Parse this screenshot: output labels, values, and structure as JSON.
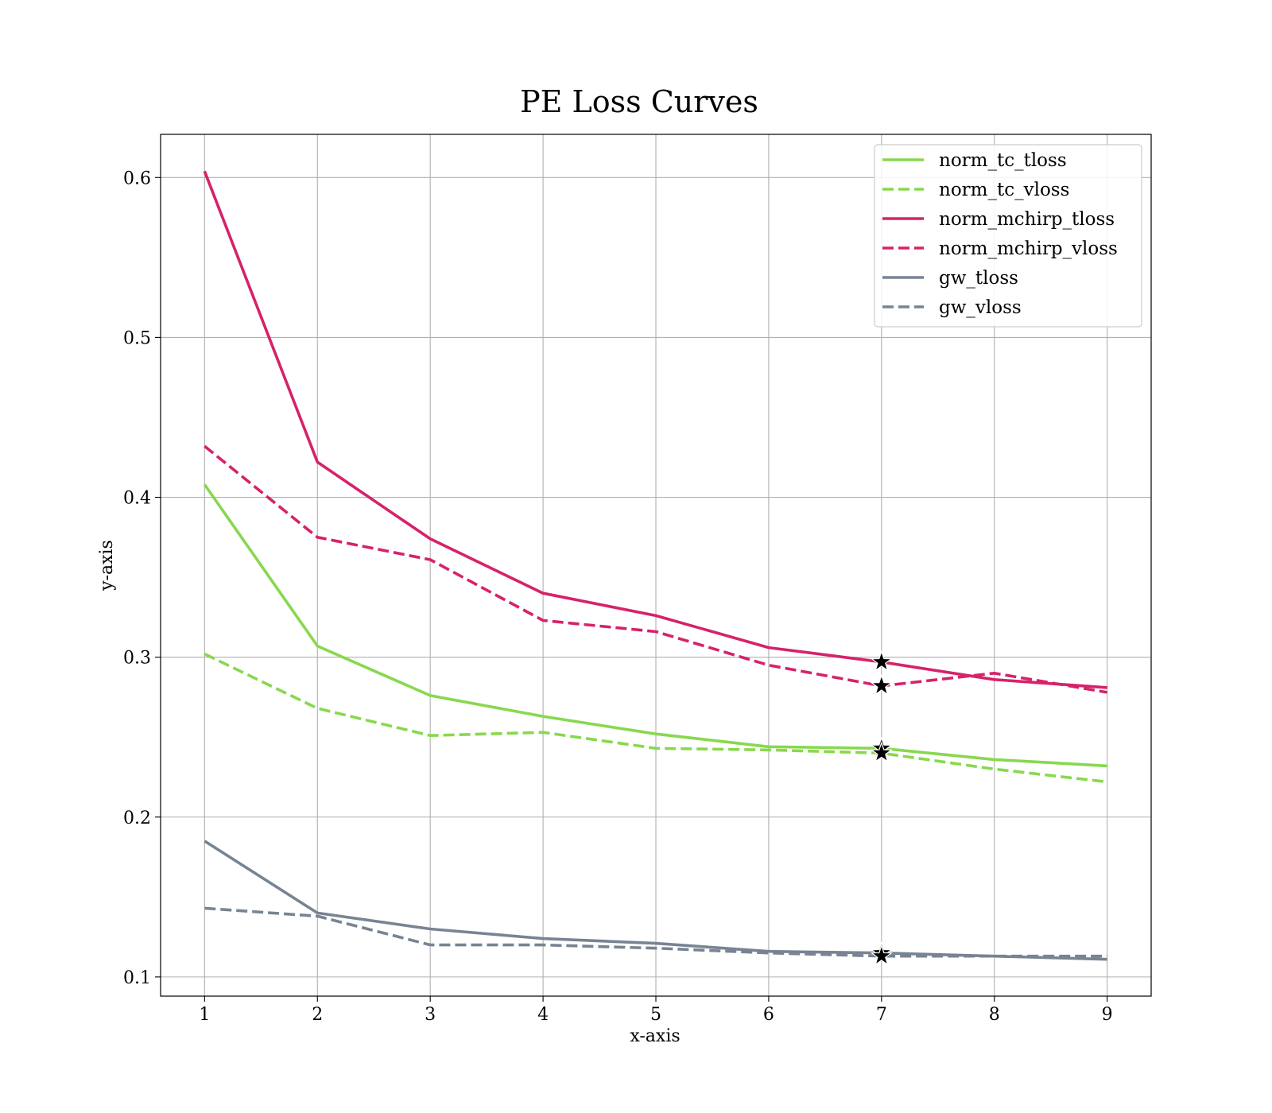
{
  "chart_data": {
    "type": "line",
    "title": "PE Loss Curves",
    "xlabel": "x-axis",
    "ylabel": "y-axis",
    "xlim": [
      0.61,
      9.39
    ],
    "ylim": [
      0.088,
      0.627
    ],
    "xticks": [
      1,
      2,
      3,
      4,
      5,
      6,
      7,
      8,
      9
    ],
    "yticks": [
      0.1,
      0.2,
      0.3,
      0.4,
      0.5,
      0.6
    ],
    "ytick_labels": [
      "0.1",
      "0.2",
      "0.3",
      "0.4",
      "0.5",
      "0.6"
    ],
    "grid": true,
    "legend_position": "top-right",
    "x": [
      1,
      2,
      3,
      4,
      5,
      6,
      7,
      8,
      9
    ],
    "series": [
      {
        "name": "norm_tc_tloss",
        "color": "#88d84f",
        "style": "solid",
        "values": [
          0.408,
          0.307,
          0.276,
          0.263,
          0.252,
          0.244,
          0.243,
          0.236,
          0.232
        ]
      },
      {
        "name": "norm_tc_vloss",
        "color": "#88d84f",
        "style": "dashed",
        "values": [
          0.302,
          0.268,
          0.251,
          0.253,
          0.243,
          0.242,
          0.24,
          0.23,
          0.222
        ]
      },
      {
        "name": "norm_mchirp_tloss",
        "color": "#d6226a",
        "style": "solid",
        "values": [
          0.604,
          0.422,
          0.374,
          0.34,
          0.326,
          0.306,
          0.297,
          0.286,
          0.281
        ]
      },
      {
        "name": "norm_mchirp_vloss",
        "color": "#d6226a",
        "style": "dashed",
        "values": [
          0.432,
          0.375,
          0.361,
          0.323,
          0.316,
          0.295,
          0.282,
          0.29,
          0.278
        ]
      },
      {
        "name": "gw_tloss",
        "color": "#788493",
        "style": "solid",
        "values": [
          0.185,
          0.14,
          0.13,
          0.124,
          0.121,
          0.116,
          0.115,
          0.113,
          0.111
        ]
      },
      {
        "name": "gw_vloss",
        "color": "#788493",
        "style": "dashed",
        "values": [
          0.143,
          0.138,
          0.12,
          0.12,
          0.118,
          0.115,
          0.113,
          0.113,
          0.113
        ]
      }
    ],
    "markers": [
      {
        "x": 7,
        "y": 0.297,
        "shape": "star",
        "color": "#000000"
      },
      {
        "x": 7,
        "y": 0.282,
        "shape": "star",
        "color": "#000000"
      },
      {
        "x": 7,
        "y": 0.243,
        "shape": "star",
        "color": "#000000"
      },
      {
        "x": 7,
        "y": 0.24,
        "shape": "star",
        "color": "#000000"
      },
      {
        "x": 7,
        "y": 0.115,
        "shape": "star",
        "color": "#000000"
      },
      {
        "x": 7,
        "y": 0.113,
        "shape": "star",
        "color": "#000000"
      }
    ]
  }
}
